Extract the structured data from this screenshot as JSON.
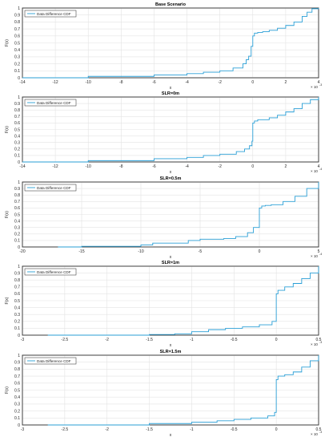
{
  "chart_data": [
    {
      "type": "line",
      "title": "Base Scenario",
      "xlabel": "x",
      "ylabel": "F(x)",
      "xlim": [
        -14,
        4
      ],
      "ylim": [
        0,
        1
      ],
      "xticks": [
        -14,
        -12,
        -10,
        -8,
        -6,
        -4,
        -2,
        0,
        2,
        4
      ],
      "yticks": [
        0,
        0.1,
        0.2,
        0.3,
        0.4,
        0.5,
        0.6,
        0.7,
        0.8,
        0.9,
        1
      ],
      "x_multiplier": "× 10",
      "x_exponent": "-3",
      "grid": true,
      "legend": {
        "location": "top-left",
        "entries": [
          "Data Difference CDF"
        ]
      },
      "series": [
        {
          "name": "Data Difference CDF",
          "x": [
            -14,
            -10,
            -6,
            -4,
            -3,
            -2,
            -1.2,
            -0.6,
            -0.4,
            -0.25,
            -0.1,
            0,
            0.1,
            0.3,
            0.6,
            1,
            1.5,
            2,
            2.5,
            3,
            3.3,
            3.6,
            4
          ],
          "y": [
            0,
            0.02,
            0.04,
            0.06,
            0.08,
            0.1,
            0.14,
            0.2,
            0.26,
            0.31,
            0.45,
            0.6,
            0.64,
            0.65,
            0.66,
            0.68,
            0.71,
            0.75,
            0.8,
            0.88,
            0.94,
            0.99,
            1
          ]
        }
      ]
    },
    {
      "type": "line",
      "title": "SLR=0m",
      "xlabel": "x",
      "ylabel": "F(x)",
      "xlim": [
        -14,
        4
      ],
      "ylim": [
        0,
        1
      ],
      "xticks": [
        -14,
        -12,
        -10,
        -8,
        -6,
        -4,
        -2,
        0,
        2,
        4
      ],
      "yticks": [
        0,
        0.1,
        0.2,
        0.3,
        0.4,
        0.5,
        0.6,
        0.7,
        0.8,
        0.9,
        1
      ],
      "x_multiplier": "× 10",
      "x_exponent": "-4",
      "grid": true,
      "legend": {
        "location": "top-left",
        "entries": [
          "Data Difference CDF"
        ]
      },
      "series": [
        {
          "name": "Data Difference CDF",
          "x": [
            -14,
            -10,
            -6,
            -4,
            -3,
            -2,
            -1,
            -0.5,
            -0.2,
            -0.05,
            0,
            0.1,
            0.3,
            1,
            1.5,
            2,
            2.5,
            3,
            3.5,
            4
          ],
          "y": [
            0,
            0.02,
            0.05,
            0.07,
            0.1,
            0.12,
            0.16,
            0.2,
            0.25,
            0.32,
            0.6,
            0.63,
            0.65,
            0.68,
            0.72,
            0.77,
            0.82,
            0.9,
            0.96,
            1
          ]
        }
      ]
    },
    {
      "type": "line",
      "title": "SLR=0.5m",
      "xlabel": "x",
      "ylabel": "F(x)",
      "xlim": [
        -20,
        5
      ],
      "ylim": [
        0,
        1
      ],
      "xticks": [
        -20,
        -15,
        -10,
        -5,
        0,
        5
      ],
      "yticks": [
        0,
        0.1,
        0.2,
        0.3,
        0.4,
        0.5,
        0.6,
        0.7,
        0.8,
        0.9,
        1
      ],
      "x_multiplier": "× 10",
      "x_exponent": "-4",
      "grid": true,
      "legend": {
        "location": "top-left",
        "entries": [
          "Data Difference CDF"
        ]
      },
      "series": [
        {
          "name": "Data Difference CDF",
          "x": [
            -17,
            -15,
            -10,
            -9,
            -6,
            -5,
            -3,
            -2,
            -1,
            -0.5,
            0,
            0.2,
            0.5,
            1,
            2,
            3,
            4,
            5
          ],
          "y": [
            0,
            0.01,
            0.03,
            0.06,
            0.1,
            0.12,
            0.13,
            0.16,
            0.22,
            0.3,
            0.6,
            0.63,
            0.64,
            0.65,
            0.7,
            0.78,
            0.9,
            1
          ]
        }
      ]
    },
    {
      "type": "line",
      "title": "SLR=1m",
      "xlabel": "x",
      "ylabel": "F(x)",
      "xlim": [
        -3,
        0.5
      ],
      "ylim": [
        0,
        1
      ],
      "xticks": [
        -3,
        -2.5,
        -2,
        -1.5,
        -1,
        -0.5,
        0,
        0.5
      ],
      "yticks": [
        0,
        0.1,
        0.2,
        0.3,
        0.4,
        0.5,
        0.6,
        0.7,
        0.8,
        0.9,
        1
      ],
      "x_multiplier": "× 10",
      "x_exponent": "-3",
      "grid": true,
      "legend": {
        "location": "top-left",
        "entries": [
          "Data Difference CDF"
        ]
      },
      "series": [
        {
          "name": "Data Difference CDF",
          "x": [
            -2.7,
            -1.5,
            -1.2,
            -1,
            -0.8,
            -0.6,
            -0.4,
            -0.2,
            -0.05,
            0,
            0.02,
            0.1,
            0.2,
            0.3,
            0.4,
            0.5
          ],
          "y": [
            0,
            0.01,
            0.02,
            0.05,
            0.08,
            0.1,
            0.12,
            0.15,
            0.2,
            0.6,
            0.65,
            0.7,
            0.75,
            0.82,
            0.9,
            1
          ]
        }
      ]
    },
    {
      "type": "line",
      "title": "SLR=1.5m",
      "xlabel": "x",
      "ylabel": "F(x)",
      "xlim": [
        -3,
        0.5
      ],
      "ylim": [
        0,
        1
      ],
      "xticks": [
        -3,
        -2.5,
        -2,
        -1.5,
        -1,
        -0.5,
        0,
        0.5
      ],
      "yticks": [
        0,
        0.1,
        0.2,
        0.3,
        0.4,
        0.5,
        0.6,
        0.7,
        0.8,
        0.9,
        1
      ],
      "x_multiplier": "× 10",
      "x_exponent": "-3",
      "grid": true,
      "legend": {
        "location": "top-left",
        "entries": [
          "Data Difference CDF"
        ]
      },
      "series": [
        {
          "name": "Data Difference CDF",
          "x": [
            -2.7,
            -1.5,
            -1,
            -0.7,
            -0.5,
            -0.3,
            -0.1,
            -0.02,
            0,
            0.02,
            0.1,
            0.2,
            0.3,
            0.4,
            0.5
          ],
          "y": [
            0,
            0.02,
            0.04,
            0.06,
            0.08,
            0.1,
            0.13,
            0.18,
            0.65,
            0.7,
            0.72,
            0.76,
            0.83,
            0.92,
            1
          ]
        }
      ]
    }
  ]
}
